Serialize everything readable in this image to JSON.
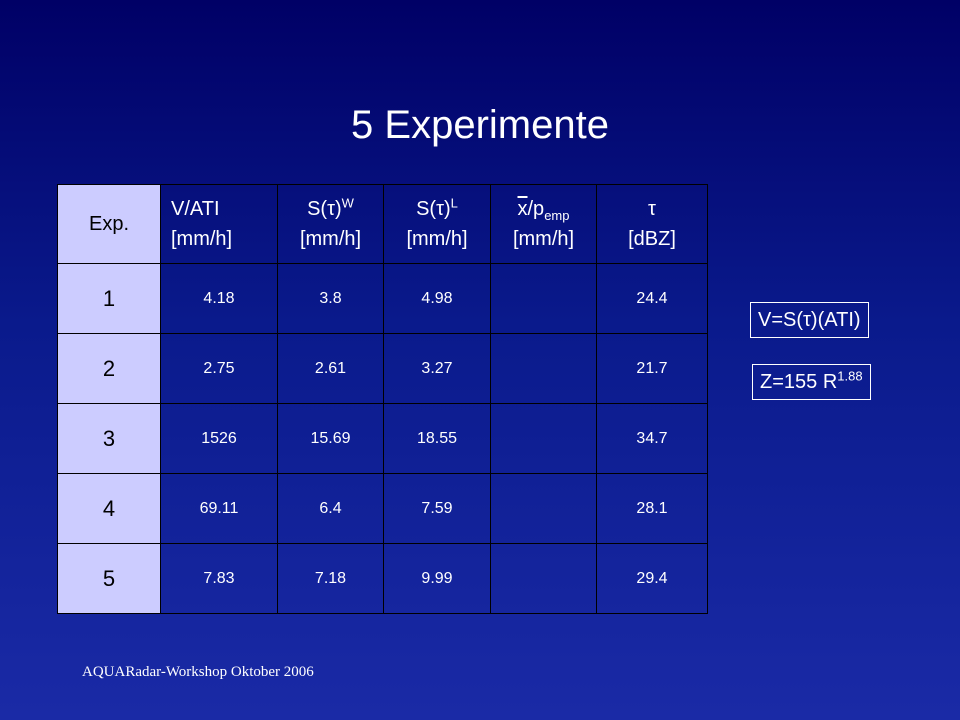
{
  "title": "5 Experimente",
  "table": {
    "headers": [
      {
        "l1": "Exp."
      },
      {
        "l1": "V/ATI",
        "l2": "[mm/h]"
      },
      {
        "l1": "S(τ)",
        "l1_sup": "W",
        "l2": "[mm/h]"
      },
      {
        "l1": "S(τ)",
        "l1_sup": "L",
        "l2": "[mm/h]"
      },
      {
        "l1_over": "x",
        "l1": "/p",
        "l1_sub": "emp",
        "l2": "[mm/h]"
      },
      {
        "l1": "τ",
        "l2": "[dBZ]"
      }
    ],
    "rows": [
      {
        "exp": "1",
        "cells": [
          "4.18",
          "3.8",
          "4.98",
          "",
          "24.4"
        ]
      },
      {
        "exp": "2",
        "cells": [
          "2.75",
          "2.61",
          "3.27",
          "",
          "21.7"
        ]
      },
      {
        "exp": "3",
        "cells": [
          "1526",
          "15.69",
          "18.55",
          "",
          "34.7"
        ]
      },
      {
        "exp": "4",
        "cells": [
          "69.11",
          "6.4",
          "7.59",
          "",
          "28.1"
        ]
      },
      {
        "exp": "5",
        "cells": [
          "7.83",
          "7.18",
          "9.99",
          "",
          "29.4"
        ]
      }
    ]
  },
  "formula1": "V=S(τ)(ATI)",
  "formula2": {
    "base": "Z=155 R",
    "exp": "1.88"
  },
  "footer": "AQUARadar-Workshop Oktober 2006",
  "colors": {
    "background_top": "#000066",
    "background_bottom": "#1a2aa6",
    "row_header_fill": "#ccccff",
    "text": "#ffffff"
  }
}
